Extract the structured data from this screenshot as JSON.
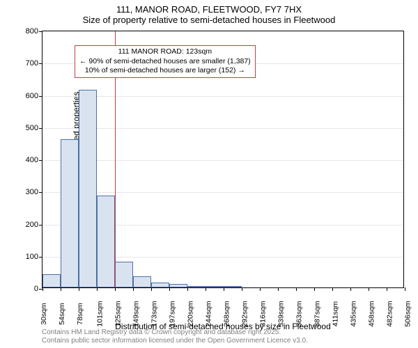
{
  "title_line1": "111, MANOR ROAD, FLEETWOOD, FY7 7HX",
  "title_line2": "Size of property relative to semi-detached houses in Fleetwood",
  "ylabel": "Number of semi-detached properties",
  "xlabel": "Distribution of semi-detached houses by size in Fleetwood",
  "footer_line1": "Contains HM Land Registry data © Crown copyright and database right 2025.",
  "footer_line2": "Contains public sector information licensed under the Open Government Licence v3.0.",
  "chart": {
    "type": "histogram",
    "ylim": [
      0,
      800
    ],
    "ytick_step": 100,
    "x_categories": [
      "30sqm",
      "54sqm",
      "78sqm",
      "101sqm",
      "125sqm",
      "149sqm",
      "173sqm",
      "197sqm",
      "220sqm",
      "244sqm",
      "268sqm",
      "292sqm",
      "316sqm",
      "339sqm",
      "363sqm",
      "387sqm",
      "411sqm",
      "435sqm",
      "458sqm",
      "482sqm",
      "506sqm"
    ],
    "values": [
      42,
      460,
      615,
      285,
      80,
      35,
      15,
      10,
      5,
      3,
      2,
      0,
      0,
      0,
      0,
      0,
      0,
      0,
      0,
      0
    ],
    "bar_fill": "#d9e3f0",
    "bar_stroke": "#4a6fa5",
    "grid_color": "#e6e6e6",
    "background": "#ffffff",
    "border_color": "#000000",
    "marker_x_index": 4,
    "marker_color": "#c04040",
    "annotation": {
      "line1": "111 MANOR ROAD: 123sqm",
      "line2": "← 90% of semi-detached houses are smaller (1,387)",
      "line3": "10% of semi-detached houses are larger (152) →",
      "border_color": "#c04040",
      "bg": "#ffffff"
    },
    "title_fontsize": 13,
    "label_fontsize": 12,
    "tick_fontsize": 11
  }
}
